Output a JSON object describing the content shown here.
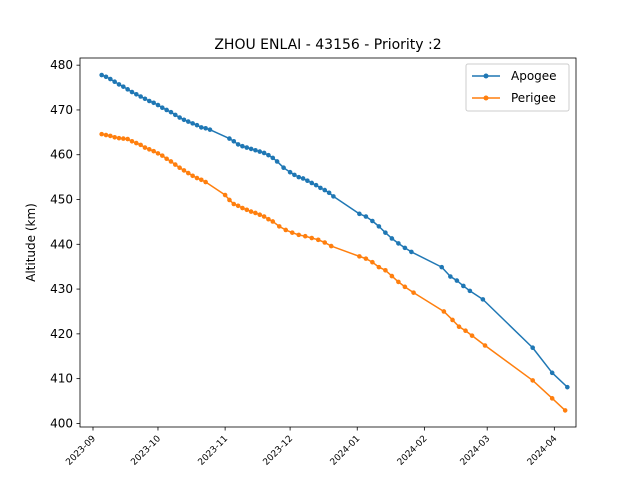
{
  "chart_data": {
    "type": "line",
    "title": "ZHOU ENLAI - 43156 - Priority :2",
    "xlabel": "",
    "ylabel": "Altitude (km)",
    "x_axis_type": "date",
    "xlim": [
      "2023-08-26",
      "2024-04-11"
    ],
    "ylim": [
      399.2,
      481.6
    ],
    "x_ticks": [
      "2023-09",
      "2023-10",
      "2023-11",
      "2023-12",
      "2024-01",
      "2024-02",
      "2024-03",
      "2024-04"
    ],
    "y_ticks": [
      400,
      410,
      420,
      430,
      440,
      450,
      460,
      470,
      480
    ],
    "grid": false,
    "legend_position": "top-right",
    "series": [
      {
        "name": "Apogee",
        "color": "#1f77b4",
        "marker": "circle",
        "points": [
          [
            "2023-09-05",
            477.8
          ],
          [
            "2023-09-07",
            477.4
          ],
          [
            "2023-09-09",
            476.9
          ],
          [
            "2023-09-11",
            476.3
          ],
          [
            "2023-09-13",
            475.7
          ],
          [
            "2023-09-15",
            475.2
          ],
          [
            "2023-09-17",
            474.6
          ],
          [
            "2023-09-19",
            474.0
          ],
          [
            "2023-09-21",
            473.5
          ],
          [
            "2023-09-23",
            473.0
          ],
          [
            "2023-09-25",
            472.5
          ],
          [
            "2023-09-27",
            472.0
          ],
          [
            "2023-09-29",
            471.6
          ],
          [
            "2023-10-01",
            471.1
          ],
          [
            "2023-10-03",
            470.5
          ],
          [
            "2023-10-05",
            470.0
          ],
          [
            "2023-10-07",
            469.5
          ],
          [
            "2023-10-09",
            468.9
          ],
          [
            "2023-10-11",
            468.3
          ],
          [
            "2023-10-13",
            467.8
          ],
          [
            "2023-10-15",
            467.4
          ],
          [
            "2023-10-17",
            467.0
          ],
          [
            "2023-10-19",
            466.6
          ],
          [
            "2023-10-21",
            466.1
          ],
          [
            "2023-10-23",
            465.9
          ],
          [
            "2023-10-25",
            465.6
          ],
          [
            "2023-11-03",
            463.6
          ],
          [
            "2023-11-05",
            463.0
          ],
          [
            "2023-11-07",
            462.3
          ],
          [
            "2023-11-09",
            461.9
          ],
          [
            "2023-11-11",
            461.6
          ],
          [
            "2023-11-13",
            461.3
          ],
          [
            "2023-11-15",
            461.0
          ],
          [
            "2023-11-17",
            460.7
          ],
          [
            "2023-11-19",
            460.4
          ],
          [
            "2023-11-21",
            459.9
          ],
          [
            "2023-11-23",
            459.3
          ],
          [
            "2023-11-25",
            458.5
          ],
          [
            "2023-11-28",
            457.1
          ],
          [
            "2023-12-01",
            456.1
          ],
          [
            "2023-12-03",
            455.5
          ],
          [
            "2023-12-05",
            455.0
          ],
          [
            "2023-12-07",
            454.7
          ],
          [
            "2023-12-09",
            454.2
          ],
          [
            "2023-12-11",
            453.7
          ],
          [
            "2023-12-13",
            453.2
          ],
          [
            "2023-12-15",
            452.6
          ],
          [
            "2023-12-17",
            452.1
          ],
          [
            "2023-12-19",
            451.5
          ],
          [
            "2023-12-21",
            450.7
          ],
          [
            "2024-01-02",
            446.8
          ],
          [
            "2024-01-05",
            446.2
          ],
          [
            "2024-01-08",
            445.2
          ],
          [
            "2024-01-11",
            444.0
          ],
          [
            "2024-01-14",
            442.6
          ],
          [
            "2024-01-17",
            441.3
          ],
          [
            "2024-01-20",
            440.2
          ],
          [
            "2024-01-23",
            439.2
          ],
          [
            "2024-01-26",
            438.3
          ],
          [
            "2024-02-09",
            434.9
          ],
          [
            "2024-02-13",
            432.8
          ],
          [
            "2024-02-16",
            431.9
          ],
          [
            "2024-02-19",
            430.7
          ],
          [
            "2024-02-22",
            429.6
          ],
          [
            "2024-02-28",
            427.7
          ],
          [
            "2024-03-22",
            416.9
          ],
          [
            "2024-03-31",
            411.3
          ],
          [
            "2024-04-07",
            408.1
          ]
        ]
      },
      {
        "name": "Perigee",
        "color": "#ff7f0e",
        "marker": "circle",
        "points": [
          [
            "2023-09-05",
            464.6
          ],
          [
            "2023-09-07",
            464.4
          ],
          [
            "2023-09-09",
            464.2
          ],
          [
            "2023-09-11",
            463.9
          ],
          [
            "2023-09-13",
            463.7
          ],
          [
            "2023-09-15",
            463.6
          ],
          [
            "2023-09-17",
            463.5
          ],
          [
            "2023-09-19",
            463.0
          ],
          [
            "2023-09-21",
            462.6
          ],
          [
            "2023-09-23",
            462.2
          ],
          [
            "2023-09-25",
            461.6
          ],
          [
            "2023-09-27",
            461.2
          ],
          [
            "2023-09-29",
            460.8
          ],
          [
            "2023-10-01",
            460.3
          ],
          [
            "2023-10-03",
            459.8
          ],
          [
            "2023-10-05",
            459.1
          ],
          [
            "2023-10-07",
            458.5
          ],
          [
            "2023-10-09",
            457.8
          ],
          [
            "2023-10-11",
            457.1
          ],
          [
            "2023-10-13",
            456.5
          ],
          [
            "2023-10-15",
            455.9
          ],
          [
            "2023-10-17",
            455.3
          ],
          [
            "2023-10-19",
            454.8
          ],
          [
            "2023-10-21",
            454.4
          ],
          [
            "2023-10-23",
            453.9
          ],
          [
            "2023-11-01",
            451.0
          ],
          [
            "2023-11-03",
            449.9
          ],
          [
            "2023-11-05",
            449.0
          ],
          [
            "2023-11-07",
            448.6
          ],
          [
            "2023-11-09",
            448.1
          ],
          [
            "2023-11-11",
            447.7
          ],
          [
            "2023-11-13",
            447.3
          ],
          [
            "2023-11-15",
            447.0
          ],
          [
            "2023-11-17",
            446.6
          ],
          [
            "2023-11-19",
            446.2
          ],
          [
            "2023-11-21",
            445.6
          ],
          [
            "2023-11-23",
            445.1
          ],
          [
            "2023-11-26",
            444.0
          ],
          [
            "2023-11-29",
            443.2
          ],
          [
            "2023-12-02",
            442.6
          ],
          [
            "2023-12-05",
            442.1
          ],
          [
            "2023-12-08",
            441.8
          ],
          [
            "2023-12-11",
            441.4
          ],
          [
            "2023-12-14",
            441.0
          ],
          [
            "2023-12-17",
            440.4
          ],
          [
            "2023-12-20",
            439.6
          ],
          [
            "2024-01-02",
            437.3
          ],
          [
            "2024-01-05",
            436.8
          ],
          [
            "2024-01-08",
            436.0
          ],
          [
            "2024-01-11",
            434.9
          ],
          [
            "2024-01-14",
            434.2
          ],
          [
            "2024-01-17",
            432.9
          ],
          [
            "2024-01-20",
            431.6
          ],
          [
            "2024-01-23",
            430.5
          ],
          [
            "2024-01-27",
            429.2
          ],
          [
            "2024-02-10",
            425.0
          ],
          [
            "2024-02-14",
            423.1
          ],
          [
            "2024-02-17",
            421.6
          ],
          [
            "2024-02-20",
            420.7
          ],
          [
            "2024-02-23",
            419.6
          ],
          [
            "2024-02-29",
            417.4
          ],
          [
            "2024-03-22",
            409.6
          ],
          [
            "2024-03-31",
            405.6
          ],
          [
            "2024-04-06",
            402.9
          ]
        ]
      }
    ]
  }
}
